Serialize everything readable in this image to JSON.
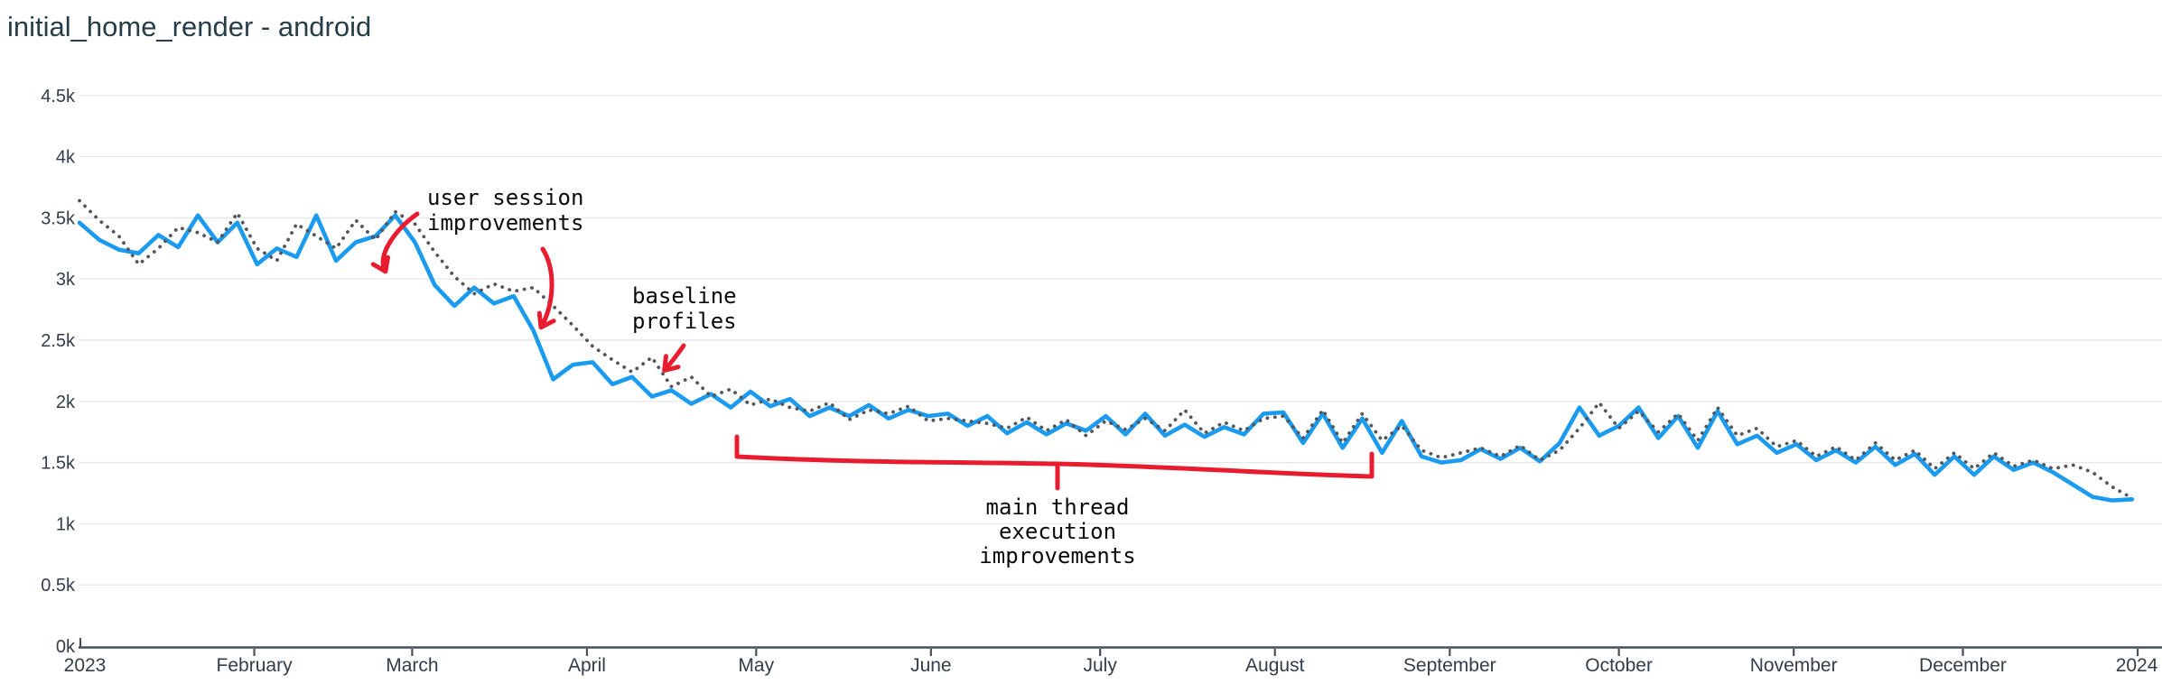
{
  "title": "initial_home_render - android",
  "colors": {
    "background": "#ffffff",
    "title_text": "#263e4a",
    "axis_text": "#333e48",
    "axis_line": "#47505a",
    "gridline": "#e8e8e8",
    "series_blue_solid": "#1b9bf0",
    "series_gray_dotted": "#53565c",
    "annotation_red": "#e81c2e",
    "annotation_text": "#0b0b0b"
  },
  "chart_data": {
    "type": "line",
    "title": "initial_home_render - android",
    "grid": true,
    "legend": false,
    "x_axis": {
      "range_days": [
        0,
        365
      ],
      "ticks": [
        {
          "label": "2023",
          "day": 0
        },
        {
          "label": "February",
          "day": 31
        },
        {
          "label": "March",
          "day": 59
        },
        {
          "label": "April",
          "day": 90
        },
        {
          "label": "May",
          "day": 120
        },
        {
          "label": "June",
          "day": 151
        },
        {
          "label": "July",
          "day": 181
        },
        {
          "label": "August",
          "day": 212
        },
        {
          "label": "September",
          "day": 243
        },
        {
          "label": "October",
          "day": 273
        },
        {
          "label": "November",
          "day": 304
        },
        {
          "label": "December",
          "day": 334
        },
        {
          "label": "2024",
          "day": 365
        }
      ]
    },
    "y_axis": {
      "range": [
        0,
        4.5
      ],
      "ticks": [
        {
          "label": "0k",
          "value": 0
        },
        {
          "label": "0.5k",
          "value": 0.5
        },
        {
          "label": "1k",
          "value": 1
        },
        {
          "label": "1.5k",
          "value": 1.5
        },
        {
          "label": "2k",
          "value": 2
        },
        {
          "label": "2.5k",
          "value": 2.5
        },
        {
          "label": "3k",
          "value": 3
        },
        {
          "label": "3.5k",
          "value": 3.5
        },
        {
          "label": "4k",
          "value": 4
        },
        {
          "label": "4.5k",
          "value": 4.5
        }
      ]
    },
    "sampling_interval_days": 3.5,
    "series": [
      {
        "name": "blue-solid",
        "style": "solid",
        "color": "#1b9bf0",
        "values": [
          3.46,
          3.32,
          3.24,
          3.21,
          3.36,
          3.26,
          3.52,
          3.3,
          3.46,
          3.12,
          3.25,
          3.18,
          3.52,
          3.15,
          3.3,
          3.35,
          3.52,
          3.3,
          2.95,
          2.78,
          2.93,
          2.8,
          2.86,
          2.58,
          2.18,
          2.3,
          2.32,
          2.14,
          2.2,
          2.04,
          2.09,
          1.98,
          2.06,
          1.95,
          2.08,
          1.96,
          2.02,
          1.88,
          1.95,
          1.88,
          1.97,
          1.86,
          1.93,
          1.88,
          1.9,
          1.8,
          1.88,
          1.74,
          1.83,
          1.73,
          1.82,
          1.76,
          1.88,
          1.73,
          1.9,
          1.72,
          1.81,
          1.71,
          1.79,
          1.73,
          1.9,
          1.91,
          1.66,
          1.9,
          1.62,
          1.86,
          1.58,
          1.84,
          1.55,
          1.5,
          1.52,
          1.61,
          1.53,
          1.62,
          1.51,
          1.66,
          1.95,
          1.72,
          1.8,
          1.95,
          1.7,
          1.88,
          1.62,
          1.92,
          1.65,
          1.72,
          1.58,
          1.65,
          1.52,
          1.6,
          1.5,
          1.63,
          1.48,
          1.57,
          1.4,
          1.55,
          1.4,
          1.55,
          1.44,
          1.5,
          1.42,
          1.32,
          1.22,
          1.19,
          1.2
        ]
      },
      {
        "name": "gray-dotted",
        "style": "dotted",
        "color": "#53565c",
        "values": [
          3.64,
          3.48,
          3.35,
          3.12,
          3.25,
          3.42,
          3.38,
          3.3,
          3.54,
          3.25,
          3.15,
          3.45,
          3.35,
          3.25,
          3.48,
          3.32,
          3.55,
          3.45,
          3.22,
          3.02,
          2.88,
          2.96,
          2.9,
          2.93,
          2.78,
          2.62,
          2.45,
          2.34,
          2.24,
          2.36,
          2.12,
          2.2,
          2.04,
          2.1,
          1.97,
          2.02,
          1.95,
          1.92,
          1.99,
          1.85,
          1.93,
          1.9,
          1.96,
          1.84,
          1.86,
          1.84,
          1.82,
          1.78,
          1.87,
          1.76,
          1.85,
          1.72,
          1.84,
          1.77,
          1.86,
          1.76,
          1.93,
          1.74,
          1.83,
          1.76,
          1.86,
          1.88,
          1.7,
          1.93,
          1.66,
          1.9,
          1.68,
          1.8,
          1.6,
          1.54,
          1.58,
          1.62,
          1.55,
          1.64,
          1.52,
          1.6,
          1.78,
          1.99,
          1.78,
          1.92,
          1.75,
          1.9,
          1.68,
          1.95,
          1.72,
          1.78,
          1.63,
          1.68,
          1.55,
          1.63,
          1.52,
          1.66,
          1.52,
          1.6,
          1.45,
          1.58,
          1.45,
          1.58,
          1.47,
          1.52,
          1.45,
          1.48,
          1.42,
          1.3,
          1.21
        ]
      }
    ],
    "annotations": [
      {
        "id": "user-session",
        "text_lines": [
          "user session",
          "improvements"
        ],
        "target_days": [
          54,
          81
        ]
      },
      {
        "id": "baseline-profiles",
        "text_lines": [
          "baseline",
          "profiles"
        ],
        "target_days": [
          103
        ]
      },
      {
        "id": "main-thread",
        "text_lines": [
          "main thread",
          "execution",
          "improvements"
        ],
        "span_days": [
          117,
          229
        ]
      }
    ]
  }
}
